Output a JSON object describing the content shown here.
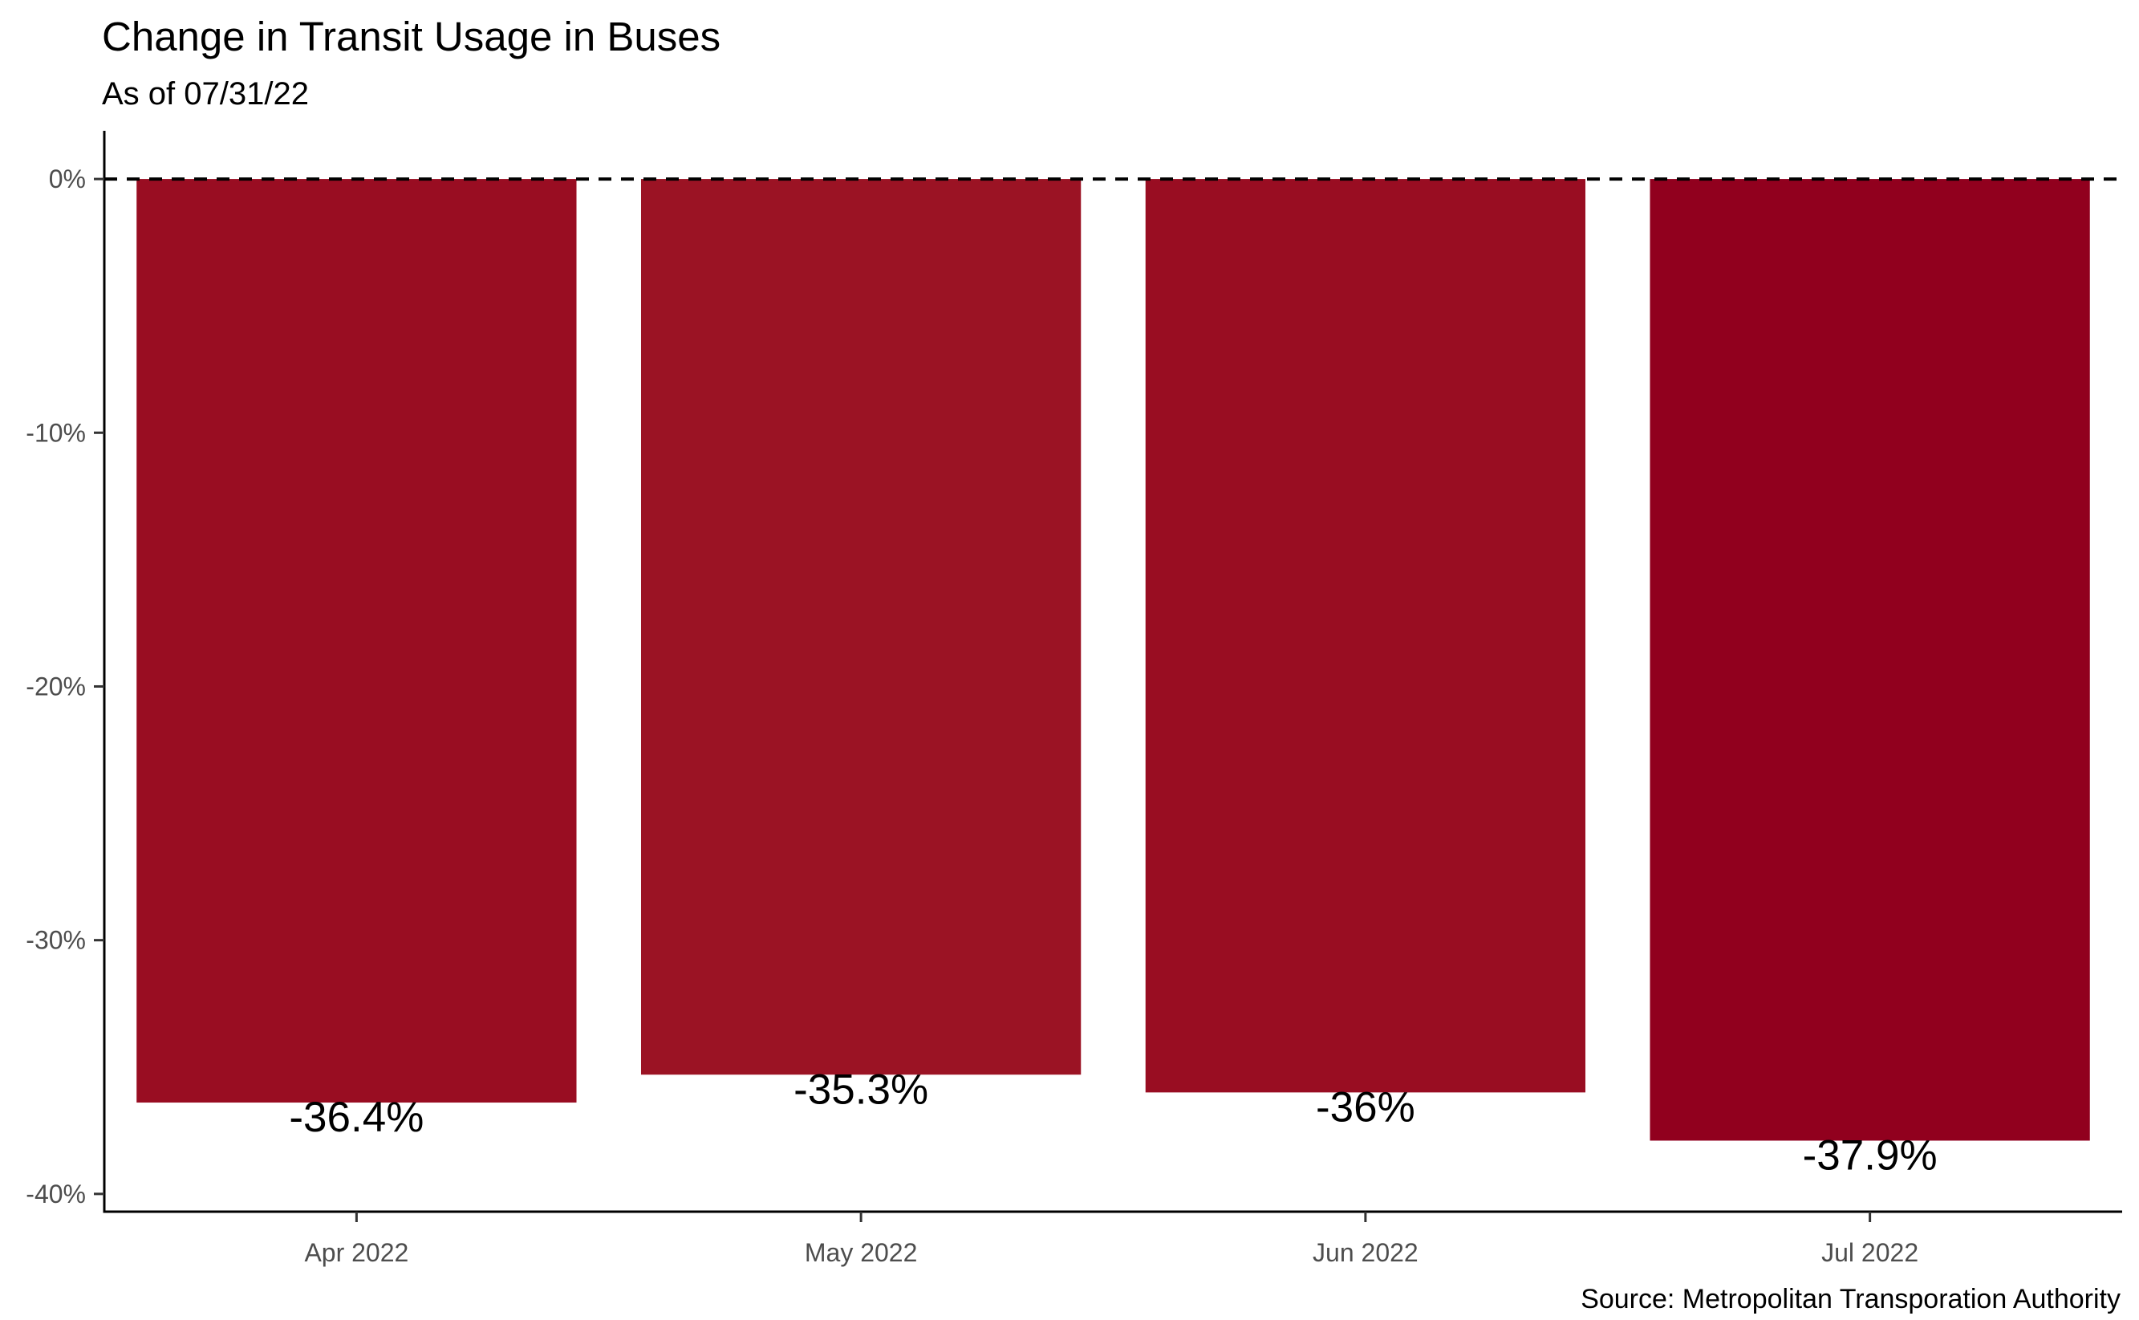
{
  "title": "Change in Transit Usage in Buses",
  "subtitle": "As of 07/31/22",
  "caption": "Source: Metropolitan Transporation Authority",
  "chart_data": {
    "type": "bar",
    "title": "Change in Transit Usage in Buses",
    "subtitle": "As of 07/31/22",
    "xlabel": "",
    "ylabel": "",
    "categories": [
      "Apr 2022",
      "May 2022",
      "Jun 2022",
      "Jul 2022"
    ],
    "values": [
      -36.4,
      -35.3,
      -36,
      -37.9
    ],
    "value_labels": [
      "-36.4%",
      "-35.3%",
      "-36%",
      "-37.9%"
    ],
    "bar_colors": [
      "#990d22",
      "#9b1324",
      "#990d22",
      "#91001e"
    ],
    "ylim": [
      -40.7,
      1.9
    ],
    "yticks": [
      0,
      -10,
      -20,
      -30,
      -40
    ],
    "ytick_labels": [
      "0%",
      "-10%",
      "-20%",
      "-30%",
      "-40%"
    ],
    "reference_line": {
      "y": 0,
      "style": "dashed",
      "color": "#000000"
    },
    "grid": false,
    "legend": "none"
  }
}
